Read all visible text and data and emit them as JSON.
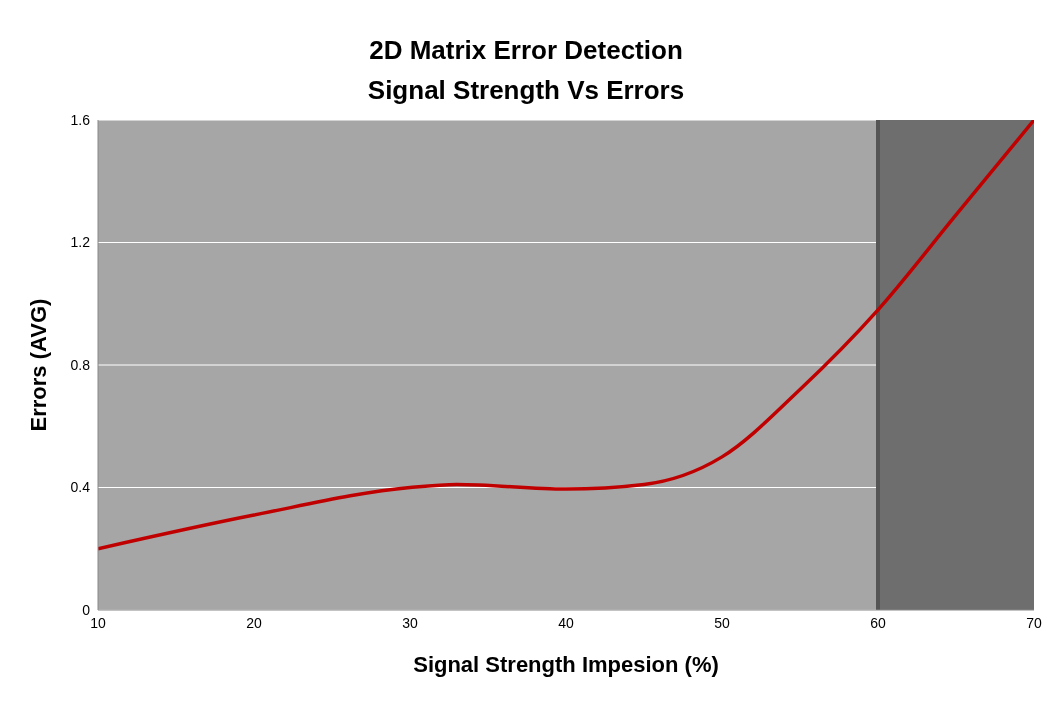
{
  "chart_data": {
    "type": "line",
    "title": "2D Matrix Error Detection",
    "subtitle": "Signal Strength Vs Errors",
    "xlabel": "Signal Strength Impesion (%)",
    "ylabel": "Errors (AVG)",
    "x": [
      10,
      20,
      30,
      33,
      40,
      45,
      50,
      55,
      60,
      65,
      70
    ],
    "series": [
      {
        "color": "#c00000",
        "values": [
          0.2,
          0.31,
          0.4,
          0.41,
          0.395,
          0.41,
          0.5,
          0.72,
          0.98,
          1.29,
          1.6
        ]
      }
    ],
    "xlim": [
      10,
      70
    ],
    "xticks": [
      10,
      20,
      30,
      40,
      50,
      60,
      70
    ],
    "ylim": [
      0,
      1.6
    ],
    "yticks": [
      0,
      0.4,
      0.8,
      1.2,
      1.6
    ],
    "grid": "y",
    "marker": "none",
    "line_style": "solid",
    "bands": [
      {
        "axis": "x",
        "from": 60,
        "to": 70,
        "color": "#6e6e6e"
      }
    ],
    "ref_lines": [
      {
        "axis": "x",
        "value": 60,
        "color": "#555555"
      }
    ]
  }
}
